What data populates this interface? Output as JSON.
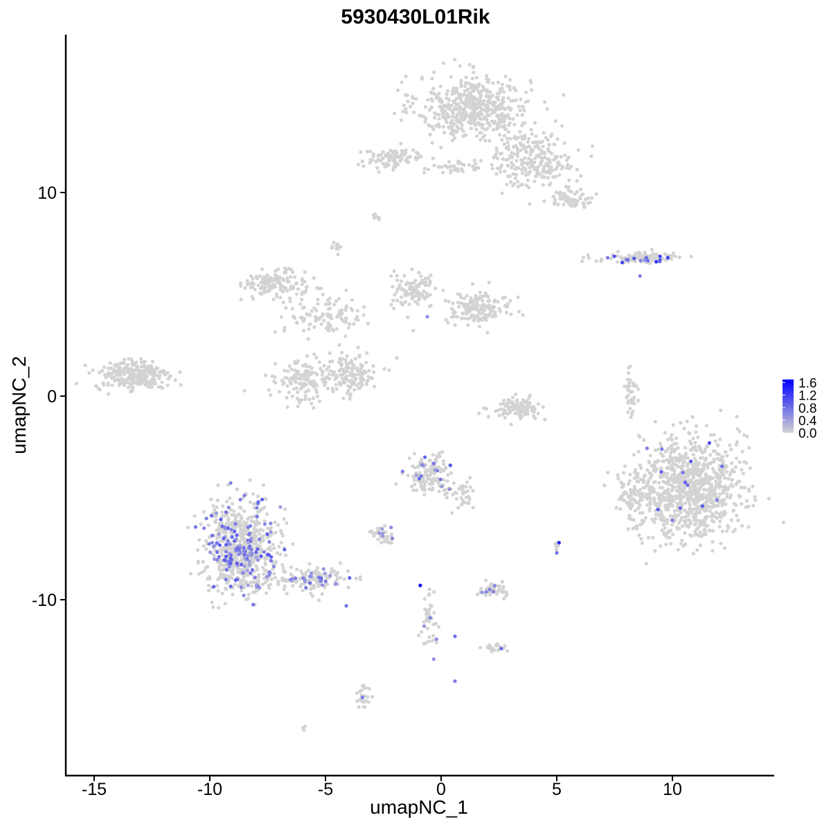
{
  "chart_data": {
    "type": "scatter",
    "title": "5930430L01Rik",
    "xlabel": "umapNC_1",
    "ylabel": "umapNC_2",
    "xlim": [
      -16.5,
      14.5
    ],
    "ylim": [
      -18.5,
      17.5
    ],
    "x_ticks": [
      -15,
      -10,
      -5,
      0,
      5,
      10
    ],
    "x_tick_labels": [
      "-15",
      "-10",
      "-5",
      "0",
      "5",
      "10"
    ],
    "y_ticks": [
      -10,
      0,
      10
    ],
    "y_tick_labels": [
      "-10",
      "0",
      "10"
    ],
    "grid": false,
    "legend_position": "right",
    "color_scale": {
      "low_color": "#d3d3d3",
      "high_color": "#0000ff",
      "min": 0.0,
      "max": 1.7,
      "breaks": [
        0.0,
        0.4,
        0.8,
        1.2,
        1.6
      ],
      "break_labels": [
        "0.0",
        "0.4",
        "0.8",
        "1.2",
        "1.6"
      ]
    },
    "clusters": [
      {
        "name": "top",
        "cx": 1.4,
        "cy": 14.2,
        "rx": 2.2,
        "ry": 1.4,
        "n": 520
      },
      {
        "name": "top-right-arm",
        "cx": 4.0,
        "cy": 11.6,
        "rx": 1.6,
        "ry": 1.2,
        "n": 240
      },
      {
        "name": "top-right-tail",
        "cx": 5.6,
        "cy": 9.7,
        "rx": 0.9,
        "ry": 0.4,
        "n": 70
      },
      {
        "name": "top-left-arm",
        "cx": -2.0,
        "cy": 11.7,
        "rx": 1.3,
        "ry": 0.45,
        "n": 90
      },
      {
        "name": "top-bridge",
        "cx": 0.5,
        "cy": 11.2,
        "rx": 1.2,
        "ry": 0.35,
        "n": 40
      },
      {
        "name": "small-top",
        "cx": -2.8,
        "cy": 8.8,
        "rx": 0.25,
        "ry": 0.15,
        "n": 8
      },
      {
        "name": "small-mid",
        "cx": -4.5,
        "cy": 7.4,
        "rx": 0.2,
        "ry": 0.3,
        "n": 10
      },
      {
        "name": "mid-left-arm",
        "cx": -7.2,
        "cy": 5.5,
        "rx": 1.2,
        "ry": 0.6,
        "n": 140
      },
      {
        "name": "mid-center",
        "cx": -5.0,
        "cy": 4.0,
        "rx": 1.6,
        "ry": 0.9,
        "n": 110
      },
      {
        "name": "mid-right-arm",
        "cx": -1.2,
        "cy": 5.2,
        "rx": 0.9,
        "ry": 0.8,
        "n": 100
      },
      {
        "name": "mid-right-blob",
        "cx": 1.6,
        "cy": 4.3,
        "rx": 1.3,
        "ry": 0.7,
        "n": 150
      },
      {
        "name": "mid-bottom-left",
        "cx": -6.0,
        "cy": 0.7,
        "rx": 1.1,
        "ry": 0.9,
        "n": 130
      },
      {
        "name": "mid-bottom-right",
        "cx": -4.0,
        "cy": 1.1,
        "rx": 1.2,
        "ry": 1.0,
        "n": 150
      },
      {
        "name": "left-island",
        "cx": -13.3,
        "cy": 1.0,
        "rx": 1.4,
        "ry": 0.7,
        "n": 260
      },
      {
        "name": "arc-bottom",
        "cx": 3.3,
        "cy": -0.6,
        "rx": 1.0,
        "ry": 0.45,
        "n": 110
      },
      {
        "name": "right-thin",
        "cx": 8.2,
        "cy": 0.2,
        "rx": 0.25,
        "ry": 1.2,
        "n": 40
      },
      {
        "name": "top-right-streak",
        "cx": 8.6,
        "cy": 6.8,
        "rx": 1.8,
        "ry": 0.25,
        "n": 90
      },
      {
        "name": "right-big",
        "cx": 10.7,
        "cy": -4.5,
        "rx": 2.0,
        "ry": 2.3,
        "n": 950
      },
      {
        "name": "right-big-left",
        "cx": 8.4,
        "cy": -5.0,
        "rx": 0.7,
        "ry": 1.0,
        "n": 70
      },
      {
        "name": "center-blob",
        "cx": -0.5,
        "cy": -3.9,
        "rx": 0.9,
        "ry": 0.8,
        "n": 130
      },
      {
        "name": "center-tail",
        "cx": 0.9,
        "cy": -4.8,
        "rx": 0.6,
        "ry": 0.8,
        "n": 40
      },
      {
        "name": "small-center-left",
        "cx": -2.5,
        "cy": -6.8,
        "rx": 0.5,
        "ry": 0.3,
        "n": 35
      },
      {
        "name": "bottom-left-big",
        "cx": -8.6,
        "cy": -7.4,
        "rx": 1.5,
        "ry": 2.0,
        "n": 600
      },
      {
        "name": "bottom-left-tail",
        "cx": -5.6,
        "cy": -9.0,
        "rx": 1.5,
        "ry": 0.55,
        "n": 110
      },
      {
        "name": "small-bottom-center",
        "cx": 2.3,
        "cy": -9.5,
        "rx": 0.6,
        "ry": 0.35,
        "n": 40
      },
      {
        "name": "vertical-strand",
        "cx": -0.5,
        "cy": -11.2,
        "rx": 0.3,
        "ry": 1.2,
        "n": 35
      },
      {
        "name": "small-bottom-right",
        "cx": 2.3,
        "cy": -12.4,
        "rx": 0.5,
        "ry": 0.2,
        "n": 20
      },
      {
        "name": "bottom-small",
        "cx": -3.4,
        "cy": -14.8,
        "rx": 0.25,
        "ry": 0.6,
        "n": 25
      },
      {
        "name": "dot-5",
        "cx": 5.0,
        "cy": -7.3,
        "rx": 0.12,
        "ry": 0.3,
        "n": 8
      },
      {
        "name": "dot-bottom",
        "cx": -6.0,
        "cy": -16.3,
        "rx": 0.1,
        "ry": 0.1,
        "n": 3
      }
    ],
    "expressing_points": [
      {
        "x": -0.9,
        "y": -9.3,
        "value": 1.6
      },
      {
        "x": 5.1,
        "y": -7.2,
        "value": 1.4
      },
      {
        "x": 9.3,
        "y": 6.6,
        "value": 1.3
      },
      {
        "x": 9.8,
        "y": 6.8,
        "value": 1.2
      },
      {
        "x": 11.6,
        "y": -2.3,
        "value": 1.1
      },
      {
        "x": 10.8,
        "y": -3.2,
        "value": 1.0
      },
      {
        "x": 11.3,
        "y": -5.4,
        "value": 1.0
      },
      {
        "x": 0.4,
        "y": -3.4,
        "value": 1.0
      },
      {
        "x": -0.7,
        "y": -3.0,
        "value": 0.9
      },
      {
        "x": -7.9,
        "y": -5.2,
        "value": 0.9
      },
      {
        "x": -9.3,
        "y": -5.7,
        "value": 0.8
      },
      {
        "x": -8.8,
        "y": -7.5,
        "value": 0.8
      },
      {
        "x": -4.1,
        "y": -10.3,
        "value": 0.8
      },
      {
        "x": 0.6,
        "y": -11.8,
        "value": 0.8
      },
      {
        "x": 2.6,
        "y": -12.4,
        "value": 0.8
      },
      {
        "x": 0.6,
        "y": -14.0,
        "value": 0.7
      },
      {
        "x": 8.6,
        "y": 5.9,
        "value": 0.7
      },
      {
        "x": 7.2,
        "y": 6.8,
        "value": 0.7
      },
      {
        "x": 5.0,
        "y": -7.7,
        "value": 0.8
      },
      {
        "x": 2.1,
        "y": -9.5,
        "value": 0.7
      },
      {
        "x": -3.4,
        "y": -14.8,
        "value": 0.7
      },
      {
        "x": -0.6,
        "y": 3.9,
        "value": 0.6
      },
      {
        "x": 10.0,
        "y": -6.1,
        "value": 0.7
      }
    ],
    "expressing_clusters": [
      {
        "cluster": "bottom-left-big",
        "n": 140,
        "min": 0.4,
        "max": 1.0
      },
      {
        "cluster": "bottom-left-tail",
        "n": 25,
        "min": 0.4,
        "max": 0.9
      },
      {
        "cluster": "center-blob",
        "n": 12,
        "min": 0.4,
        "max": 0.9
      },
      {
        "cluster": "small-center-left",
        "n": 6,
        "min": 0.4,
        "max": 0.7
      },
      {
        "cluster": "top-right-streak",
        "n": 14,
        "min": 0.5,
        "max": 1.2
      },
      {
        "cluster": "right-big",
        "n": 10,
        "min": 0.5,
        "max": 1.0
      },
      {
        "cluster": "small-bottom-center",
        "n": 4,
        "min": 0.5,
        "max": 0.8
      },
      {
        "cluster": "vertical-strand",
        "n": 4,
        "min": 0.5,
        "max": 0.8
      }
    ]
  }
}
